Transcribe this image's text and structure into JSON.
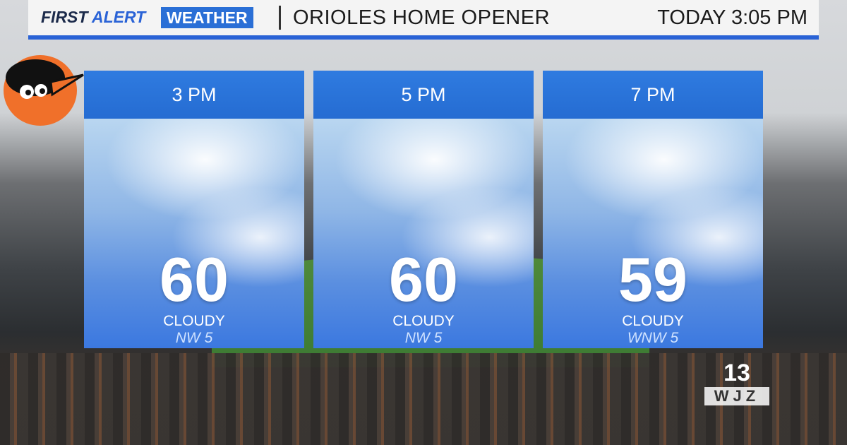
{
  "header": {
    "brand_first": "FIRST ALERT",
    "brand_second": "WEATHER",
    "title": "ORIOLES HOME OPENER",
    "time": "TODAY 3:05 PM"
  },
  "panels": [
    {
      "time": "3 PM",
      "temperature": 60,
      "condition": "CLOUDY",
      "wind": "NW 5"
    },
    {
      "time": "5 PM",
      "temperature": 60,
      "condition": "CLOUDY",
      "wind": "NW 5"
    },
    {
      "time": "7 PM",
      "temperature": 59,
      "condition": "CLOUDY",
      "wind": "WNW 5"
    }
  ],
  "station": {
    "channel": "13",
    "call_sign": "WJZ"
  }
}
